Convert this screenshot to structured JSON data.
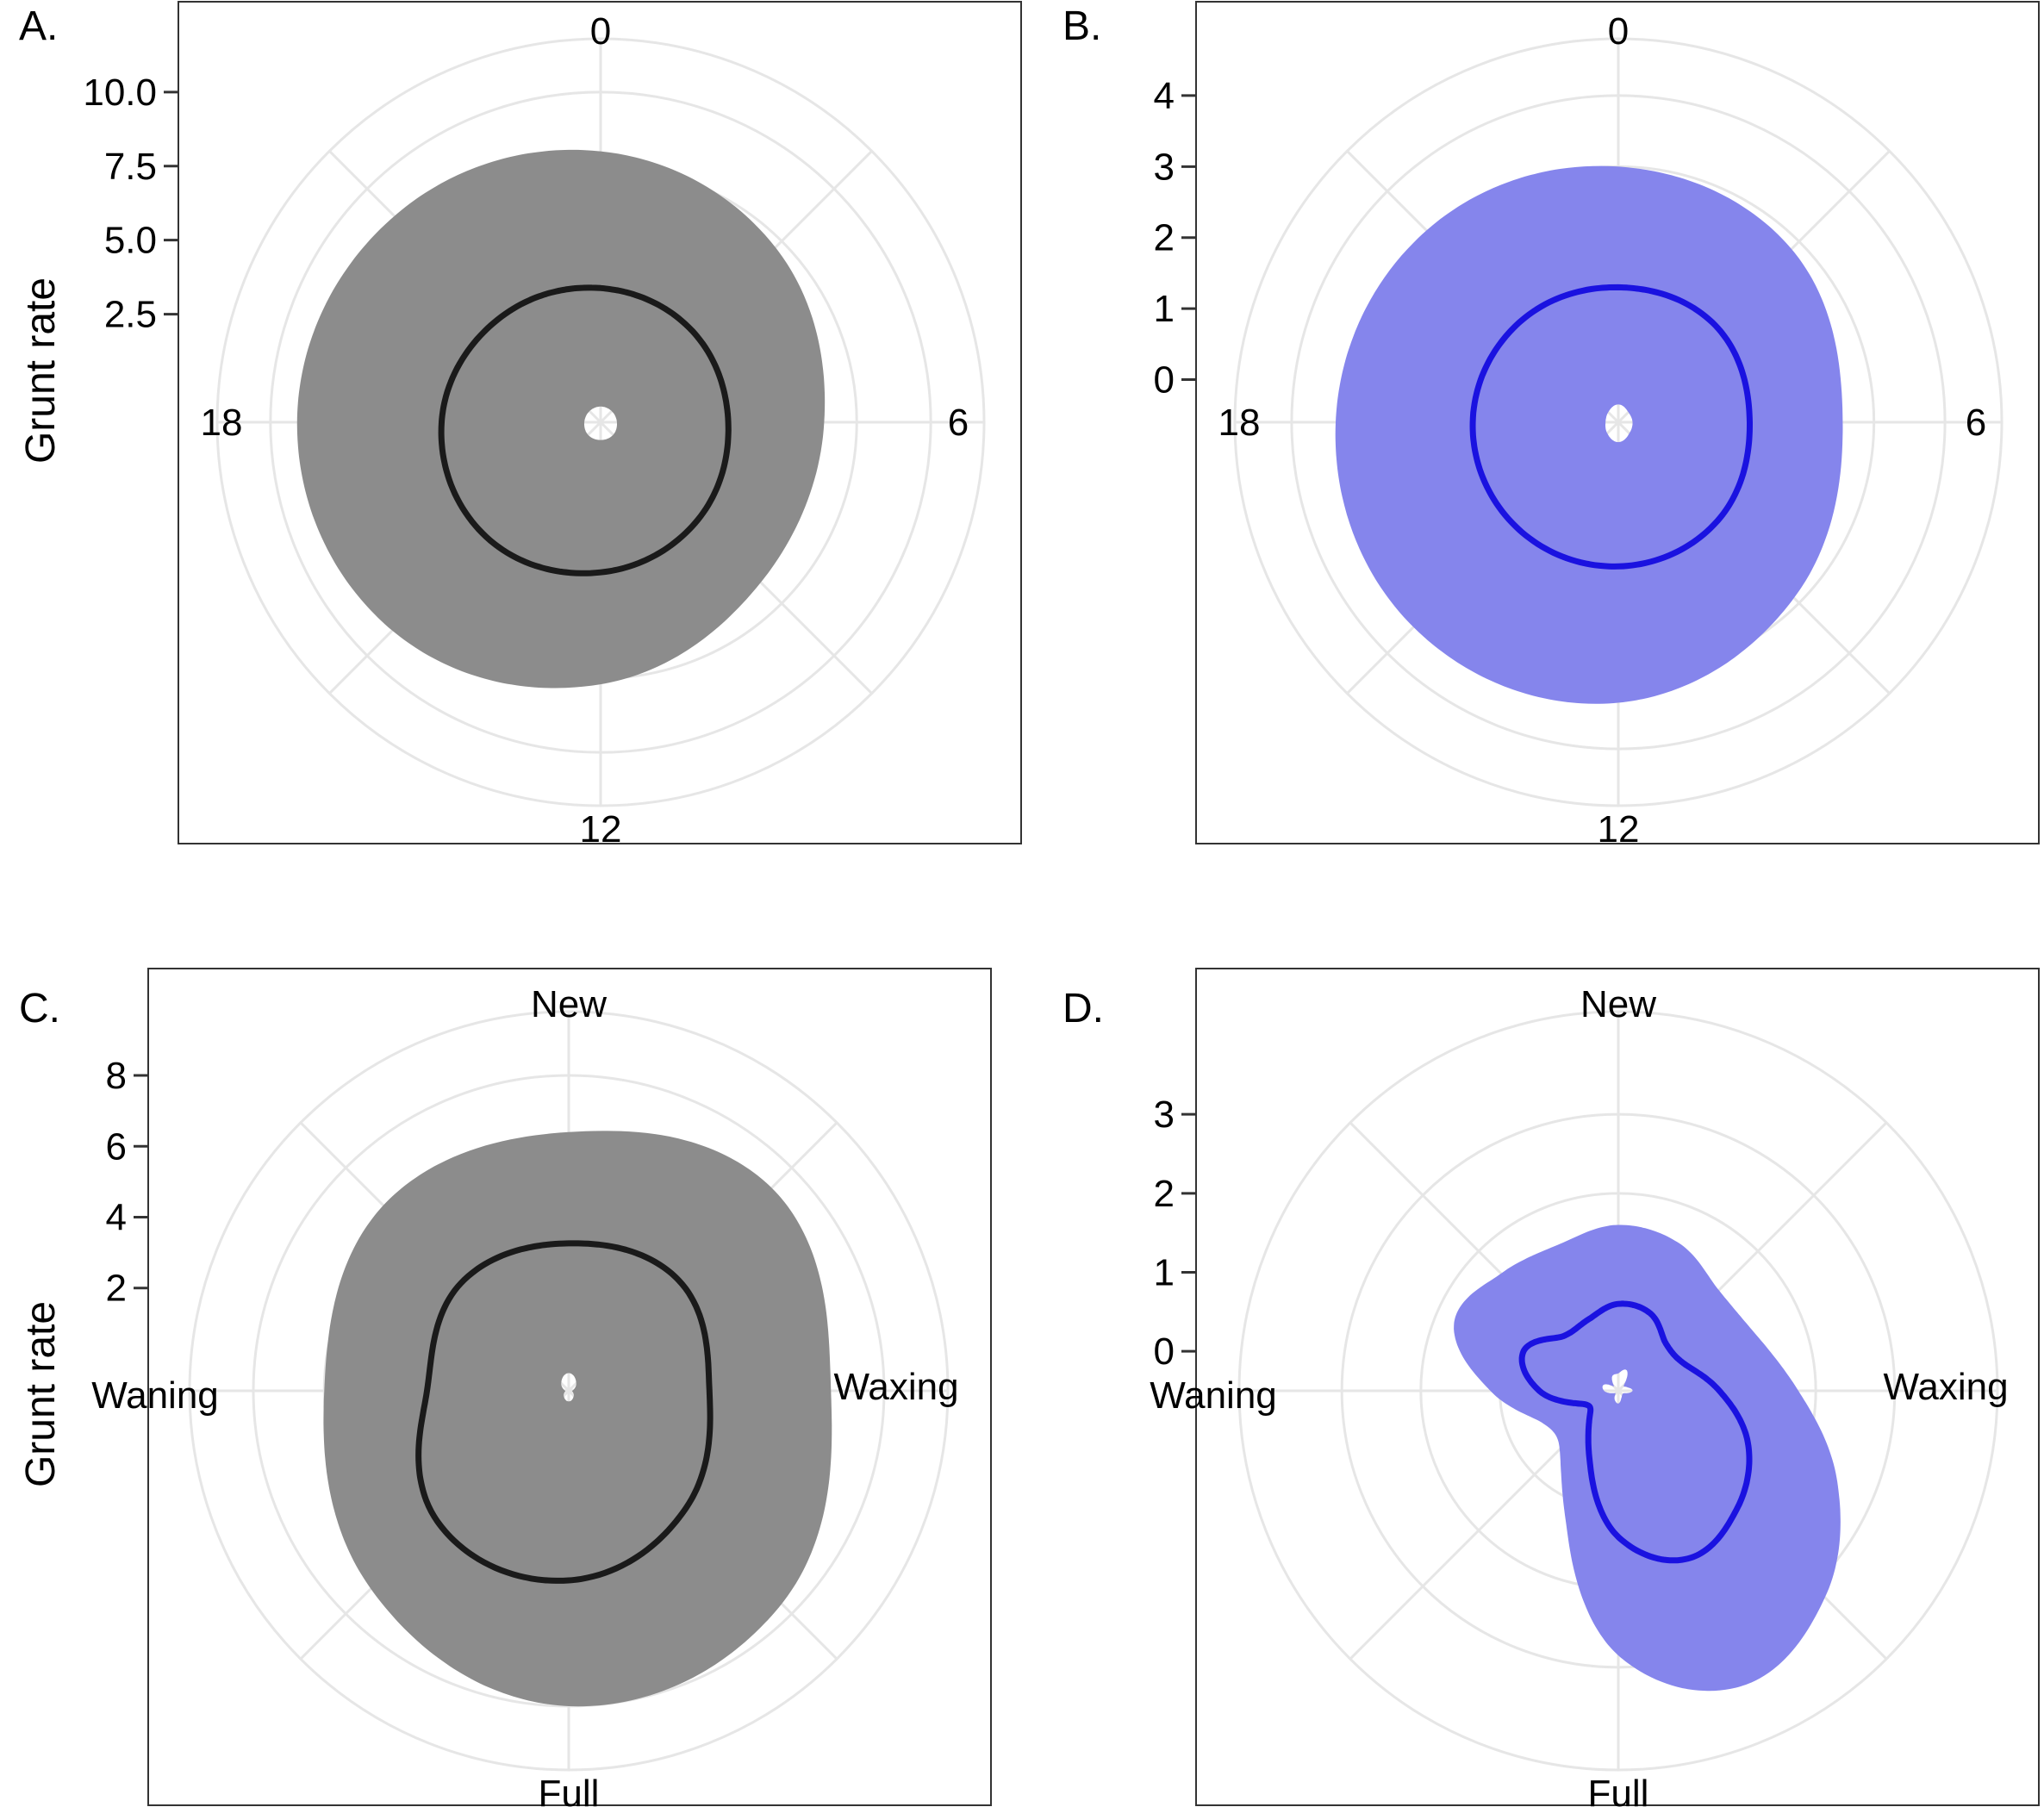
{
  "figure": {
    "ylabel": "Grunt rate"
  },
  "colors": {
    "grey_ribbon": "#8c8c8c",
    "grey_line": "#1a1a1a",
    "blue_ribbon": "#8585ec",
    "blue_line": "#1a12e0",
    "grid": "#e6e6e6",
    "frame": "#333333"
  },
  "chart_data": [
    {
      "type": "polar-line-ribbon",
      "panel_label": "A.",
      "ylabel": "Grunt rate",
      "theta_ticks": [
        "0",
        "6",
        "12",
        "18"
      ],
      "theta_period": 24,
      "r_ticks": [
        "2.5",
        "5.0",
        "7.5",
        "10.0"
      ],
      "r_tick_values": [
        2.5,
        5,
        7.5,
        10
      ],
      "rlim": [
        -1.15,
        11.8
      ],
      "series": [
        {
          "role": "fit",
          "theta": [
            0,
            3,
            6,
            9,
            12,
            15,
            18,
            21
          ],
          "r": [
            3.38,
            3.22,
            3.16,
            3.5,
            3.92,
            4.32,
            4.22,
            3.76
          ]
        },
        {
          "role": "ci_upper",
          "theta": [
            0,
            3,
            6,
            9,
            12,
            15,
            18,
            21
          ],
          "r": [
            8.0,
            7.2,
            6.4,
            6.5,
            7.7,
            8.8,
            9.1,
            8.7
          ]
        },
        {
          "role": "ci_lower",
          "theta": [
            0,
            3,
            6,
            9,
            12,
            15,
            18,
            21
          ],
          "r": [
            -0.62,
            -0.62,
            -0.6,
            -0.55,
            -0.55,
            -0.55,
            -0.6,
            -0.62
          ]
        }
      ]
    },
    {
      "type": "polar-line-ribbon",
      "panel_label": "B.",
      "ylabel": "",
      "theta_ticks": [
        "0",
        "6",
        "12",
        "18"
      ],
      "theta_period": 24,
      "r_ticks": [
        "0",
        "1",
        "2",
        "3",
        "4"
      ],
      "r_tick_values": [
        0,
        1,
        2,
        3,
        4
      ],
      "rlim": [
        -0.6,
        4.8
      ],
      "series": [
        {
          "role": "fit",
          "theta": [
            0,
            3,
            6,
            9,
            12,
            15,
            18,
            21
          ],
          "r": [
            1.3,
            1.33,
            1.25,
            1.37,
            1.43,
            1.46,
            1.45,
            1.38
          ]
        },
        {
          "role": "ci_upper",
          "theta": [
            0,
            3,
            6,
            9,
            12,
            15,
            18,
            21
          ],
          "r": [
            3.0,
            2.85,
            2.56,
            2.9,
            3.35,
            3.48,
            3.38,
            3.22
          ]
        },
        {
          "role": "ci_lower",
          "theta": [
            0,
            3,
            6,
            9,
            12,
            15,
            18,
            21
          ],
          "r": [
            -0.35,
            -0.4,
            -0.4,
            -0.38,
            -0.32,
            -0.38,
            -0.42,
            -0.4
          ]
        }
      ]
    },
    {
      "type": "polar-line-ribbon",
      "panel_label": "C.",
      "ylabel": "Grunt rate",
      "theta_ticks": [
        "New",
        "Waxing",
        "Full",
        "Waning"
      ],
      "theta_period": 8,
      "r_ticks": [
        "2",
        "4",
        "6",
        "8"
      ],
      "r_tick_values": [
        2,
        4,
        6,
        8
      ],
      "rlim": [
        -0.9,
        9.8
      ],
      "series": [
        {
          "role": "fit",
          "theta": [
            0,
            1,
            2,
            3,
            4,
            5,
            6,
            7
          ],
          "r": [
            3.26,
            3.5,
            3.07,
            3.78,
            4.45,
            4.33,
            3.1,
            3.4
          ]
        },
        {
          "role": "ci_upper",
          "theta": [
            0,
            1,
            2,
            3,
            4,
            5,
            6,
            7
          ],
          "r": [
            6.4,
            7.2,
            6.5,
            7.6,
            8.0,
            7.0,
            6.0,
            6.5
          ]
        },
        {
          "role": "ci_lower",
          "theta": [
            0,
            1,
            2,
            3,
            4,
            5,
            6,
            7
          ],
          "r": [
            -0.4,
            -0.6,
            -0.8,
            -0.7,
            -0.6,
            -0.7,
            -0.8,
            -0.6
          ]
        }
      ]
    },
    {
      "type": "polar-line-ribbon",
      "panel_label": "D.",
      "ylabel": "",
      "theta_ticks": [
        "New",
        "Waxing",
        "Full",
        "Waning"
      ],
      "theta_period": 8,
      "r_ticks": [
        "0",
        "1",
        "2",
        "3"
      ],
      "r_tick_values": [
        0,
        1,
        2,
        3
      ],
      "rlim": [
        -0.5,
        4.3
      ],
      "series": [
        {
          "role": "fit",
          "theta": [
            0,
            0.5,
            1,
            1.5,
            2,
            2.5,
            3,
            3.5,
            4,
            4.5,
            5,
            5.5,
            6,
            6.5,
            7,
            7.5
          ],
          "r": [
            0.6,
            0.56,
            0.35,
            0.4,
            0.78,
            1.28,
            1.62,
            1.8,
            1.35,
            0.45,
            0.02,
            -0.05,
            0.5,
            0.8,
            0.48,
            0.48
          ]
        },
        {
          "role": "ci_upper",
          "theta": [
            0,
            0.5,
            1,
            1.5,
            2,
            2.5,
            3,
            3.5,
            4,
            4.5,
            5,
            5.5,
            6,
            6.5,
            7,
            7.5
          ],
          "r": [
            1.6,
            1.52,
            1.3,
            1.38,
            1.78,
            2.5,
            3.2,
            3.55,
            2.85,
            1.25,
            0.55,
            0.55,
            1.12,
            1.75,
            1.6,
            1.5
          ]
        },
        {
          "role": "ci_lower",
          "theta": [
            0,
            0.5,
            1,
            1.5,
            2,
            2.5,
            3,
            3.5,
            4,
            4.5,
            5,
            5.5,
            6,
            6.5,
            7,
            7.5
          ],
          "r": [
            -0.28,
            -0.22,
            -0.4,
            -0.38,
            -0.32,
            -0.42,
            -0.43,
            -0.4,
            -0.34,
            -0.38,
            -0.45,
            -0.42,
            -0.32,
            -0.3,
            -0.42,
            -0.3
          ]
        }
      ]
    }
  ]
}
